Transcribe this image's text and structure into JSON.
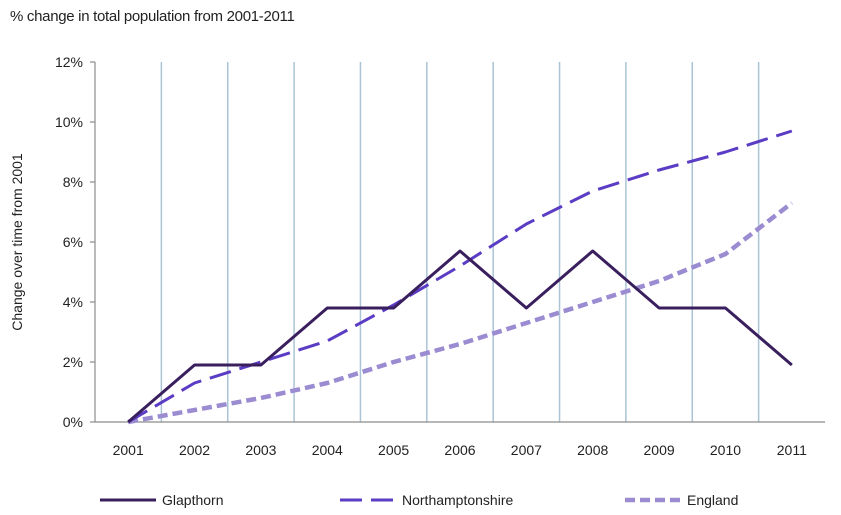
{
  "chart_data": {
    "type": "line",
    "title": "% change in total population from 2001-2011",
    "xlabel": "",
    "ylabel": "Change over time from 2001",
    "categories": [
      "2001",
      "2002",
      "2003",
      "2004",
      "2005",
      "2006",
      "2007",
      "2008",
      "2009",
      "2010",
      "2011"
    ],
    "yticks": [
      "0%",
      "2%",
      "4%",
      "6%",
      "8%",
      "10%",
      "12%"
    ],
    "ylim": [
      0,
      12
    ],
    "grid": "vertical",
    "legend": "bottom",
    "series": [
      {
        "name": "Glapthorn",
        "color": "#3a1f5e",
        "style": "solid",
        "values": [
          0,
          1.9,
          1.9,
          3.8,
          3.8,
          5.7,
          3.8,
          5.7,
          3.8,
          3.8,
          1.9
        ]
      },
      {
        "name": "Northamptonshire",
        "color": "#5b3cc4",
        "style": "dashed",
        "values": [
          0,
          1.3,
          2.0,
          2.7,
          3.9,
          5.2,
          6.6,
          7.7,
          8.4,
          9.0,
          9.7
        ]
      },
      {
        "name": "England",
        "color": "#9b8cd2",
        "style": "dotted",
        "values": [
          0,
          0.4,
          0.8,
          1.3,
          2.0,
          2.6,
          3.3,
          4.0,
          4.7,
          5.6,
          7.3
        ]
      }
    ]
  }
}
